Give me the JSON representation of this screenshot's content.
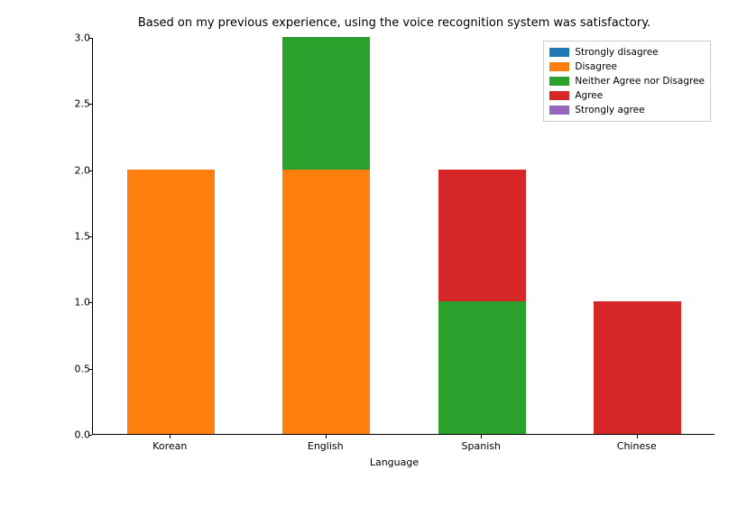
{
  "chart": {
    "type": "stacked-bar",
    "title": "Based on my previous experience, using the voice recognition system was satisfactory.",
    "title_fontsize": 13,
    "xlabel": "Language",
    "label_fontsize": 11,
    "tick_fontsize": 11,
    "background_color": "#ffffff",
    "border_color": "#000000",
    "ylim": [
      0,
      3
    ],
    "ytick_step": 0.5,
    "yticks": [
      "0.0",
      "0.5",
      "1.0",
      "1.5",
      "2.0",
      "2.5",
      "3.0"
    ],
    "categories": [
      "Korean",
      "English",
      "Spanish",
      "Chinese"
    ],
    "series": [
      {
        "name": "Strongly disagree",
        "color": "#1f77b4",
        "values": [
          0,
          0,
          0,
          0
        ]
      },
      {
        "name": "Disagree",
        "color": "#ff7f0e",
        "values": [
          2,
          2,
          0,
          0
        ]
      },
      {
        "name": "Neither Agree nor Disagree",
        "color": "#2ca02c",
        "values": [
          0,
          1,
          1,
          0
        ]
      },
      {
        "name": "Agree",
        "color": "#d62728",
        "values": [
          0,
          0,
          1,
          1
        ]
      },
      {
        "name": "Strongly agree",
        "color": "#9467bd",
        "values": [
          0,
          0,
          0,
          0
        ]
      }
    ],
    "bar_width": 0.56,
    "legend_position": "upper-right",
    "legend_border_color": "#cccccc"
  }
}
